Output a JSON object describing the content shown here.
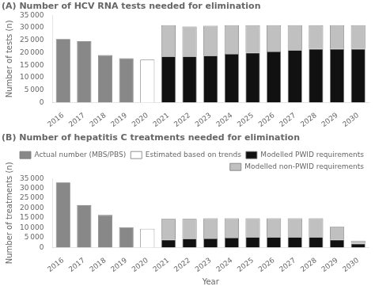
{
  "chart_data": [
    {
      "type": "bar",
      "title": "(A) Number of HCV RNA tests needed for elimination",
      "ylabel": "Number of tests (n)",
      "categories": [
        "2016",
        "2017",
        "2018",
        "2019",
        "2020",
        "2021",
        "2022",
        "2023",
        "2024",
        "2025",
        "2026",
        "2027",
        "2028",
        "2029",
        "2030"
      ],
      "series": [
        {
          "color": "#888888",
          "values": [
            25500,
            24600,
            19000,
            17800,
            0,
            0,
            0,
            0,
            0,
            0,
            0,
            0,
            0,
            0,
            0
          ]
        },
        {
          "color": "#ffffff",
          "values": [
            0,
            0,
            0,
            0,
            17200,
            0,
            0,
            0,
            0,
            0,
            0,
            0,
            0,
            0,
            0
          ]
        },
        {
          "color": "#111111",
          "values": [
            0,
            0,
            0,
            0,
            0,
            18500,
            18500,
            18800,
            19500,
            20000,
            20500,
            21000,
            21500,
            21500,
            21500
          ]
        },
        {
          "color": "#c0c0c0",
          "values": [
            0,
            0,
            0,
            0,
            0,
            12500,
            12000,
            12000,
            11500,
            11000,
            10500,
            10000,
            9500,
            9500,
            9500
          ]
        }
      ],
      "ylim": [
        0,
        35000
      ],
      "yticks": [
        0,
        {
          "value": 5000,
          "label": "5 000"
        },
        {
          "value": 10000,
          "label": "10 000"
        },
        {
          "value": 15000,
          "label": "15 000"
        },
        {
          "value": 20000,
          "label": "20 000"
        },
        {
          "value": 25000,
          "label": "25 000"
        },
        {
          "value": 30000,
          "label": "30 000"
        },
        {
          "value": 35000,
          "label": "35 000"
        }
      ],
      "stacked": true,
      "grid": false,
      "legend": false
    },
    {
      "type": "bar",
      "title": "(B) Number of hepatitis C treatments needed for elimination",
      "ylabel": "Number of treatments (n)",
      "xlabel": "Year",
      "categories": [
        "2016",
        "2017",
        "2018",
        "2019",
        "2020",
        "2021",
        "2022",
        "2023",
        "2024",
        "2025",
        "2026",
        "2027",
        "2028",
        "2029",
        "2030"
      ],
      "series": [
        {
          "name": "Actual number (MBS/PBS)",
          "color": "#888888",
          "values": [
            33000,
            21500,
            16500,
            10300,
            0,
            0,
            0,
            0,
            0,
            0,
            0,
            0,
            0,
            0,
            0
          ]
        },
        {
          "name": "Estimated based on trends",
          "color": "#ffffff",
          "values": [
            0,
            0,
            0,
            0,
            9500,
            0,
            0,
            0,
            0,
            0,
            0,
            0,
            0,
            0,
            0
          ]
        },
        {
          "name": "Modelled PWID requirements",
          "color": "#111111",
          "values": [
            0,
            0,
            0,
            0,
            0,
            4000,
            4500,
            4600,
            5000,
            5300,
            5300,
            5300,
            5300,
            4000,
            2000
          ]
        },
        {
          "name": "Modelled non-PWID requirements",
          "color": "#c0c0c0",
          "values": [
            0,
            0,
            0,
            0,
            0,
            10500,
            10000,
            10200,
            9800,
            9500,
            9500,
            9500,
            9500,
            6500,
            1500
          ]
        }
      ],
      "ylim": [
        0,
        35000
      ],
      "yticks": [
        0,
        {
          "value": 5000,
          "label": "5 000"
        },
        {
          "value": 10000,
          "label": "10 000"
        },
        {
          "value": 15000,
          "label": "15 000"
        },
        {
          "value": 20000,
          "label": "20 000"
        },
        {
          "value": 25000,
          "label": "25 000"
        },
        {
          "value": 30000,
          "label": "30 000"
        },
        {
          "value": 35000,
          "label": "35 000"
        }
      ],
      "stacked": true,
      "grid": false,
      "legend": "upper right"
    }
  ]
}
